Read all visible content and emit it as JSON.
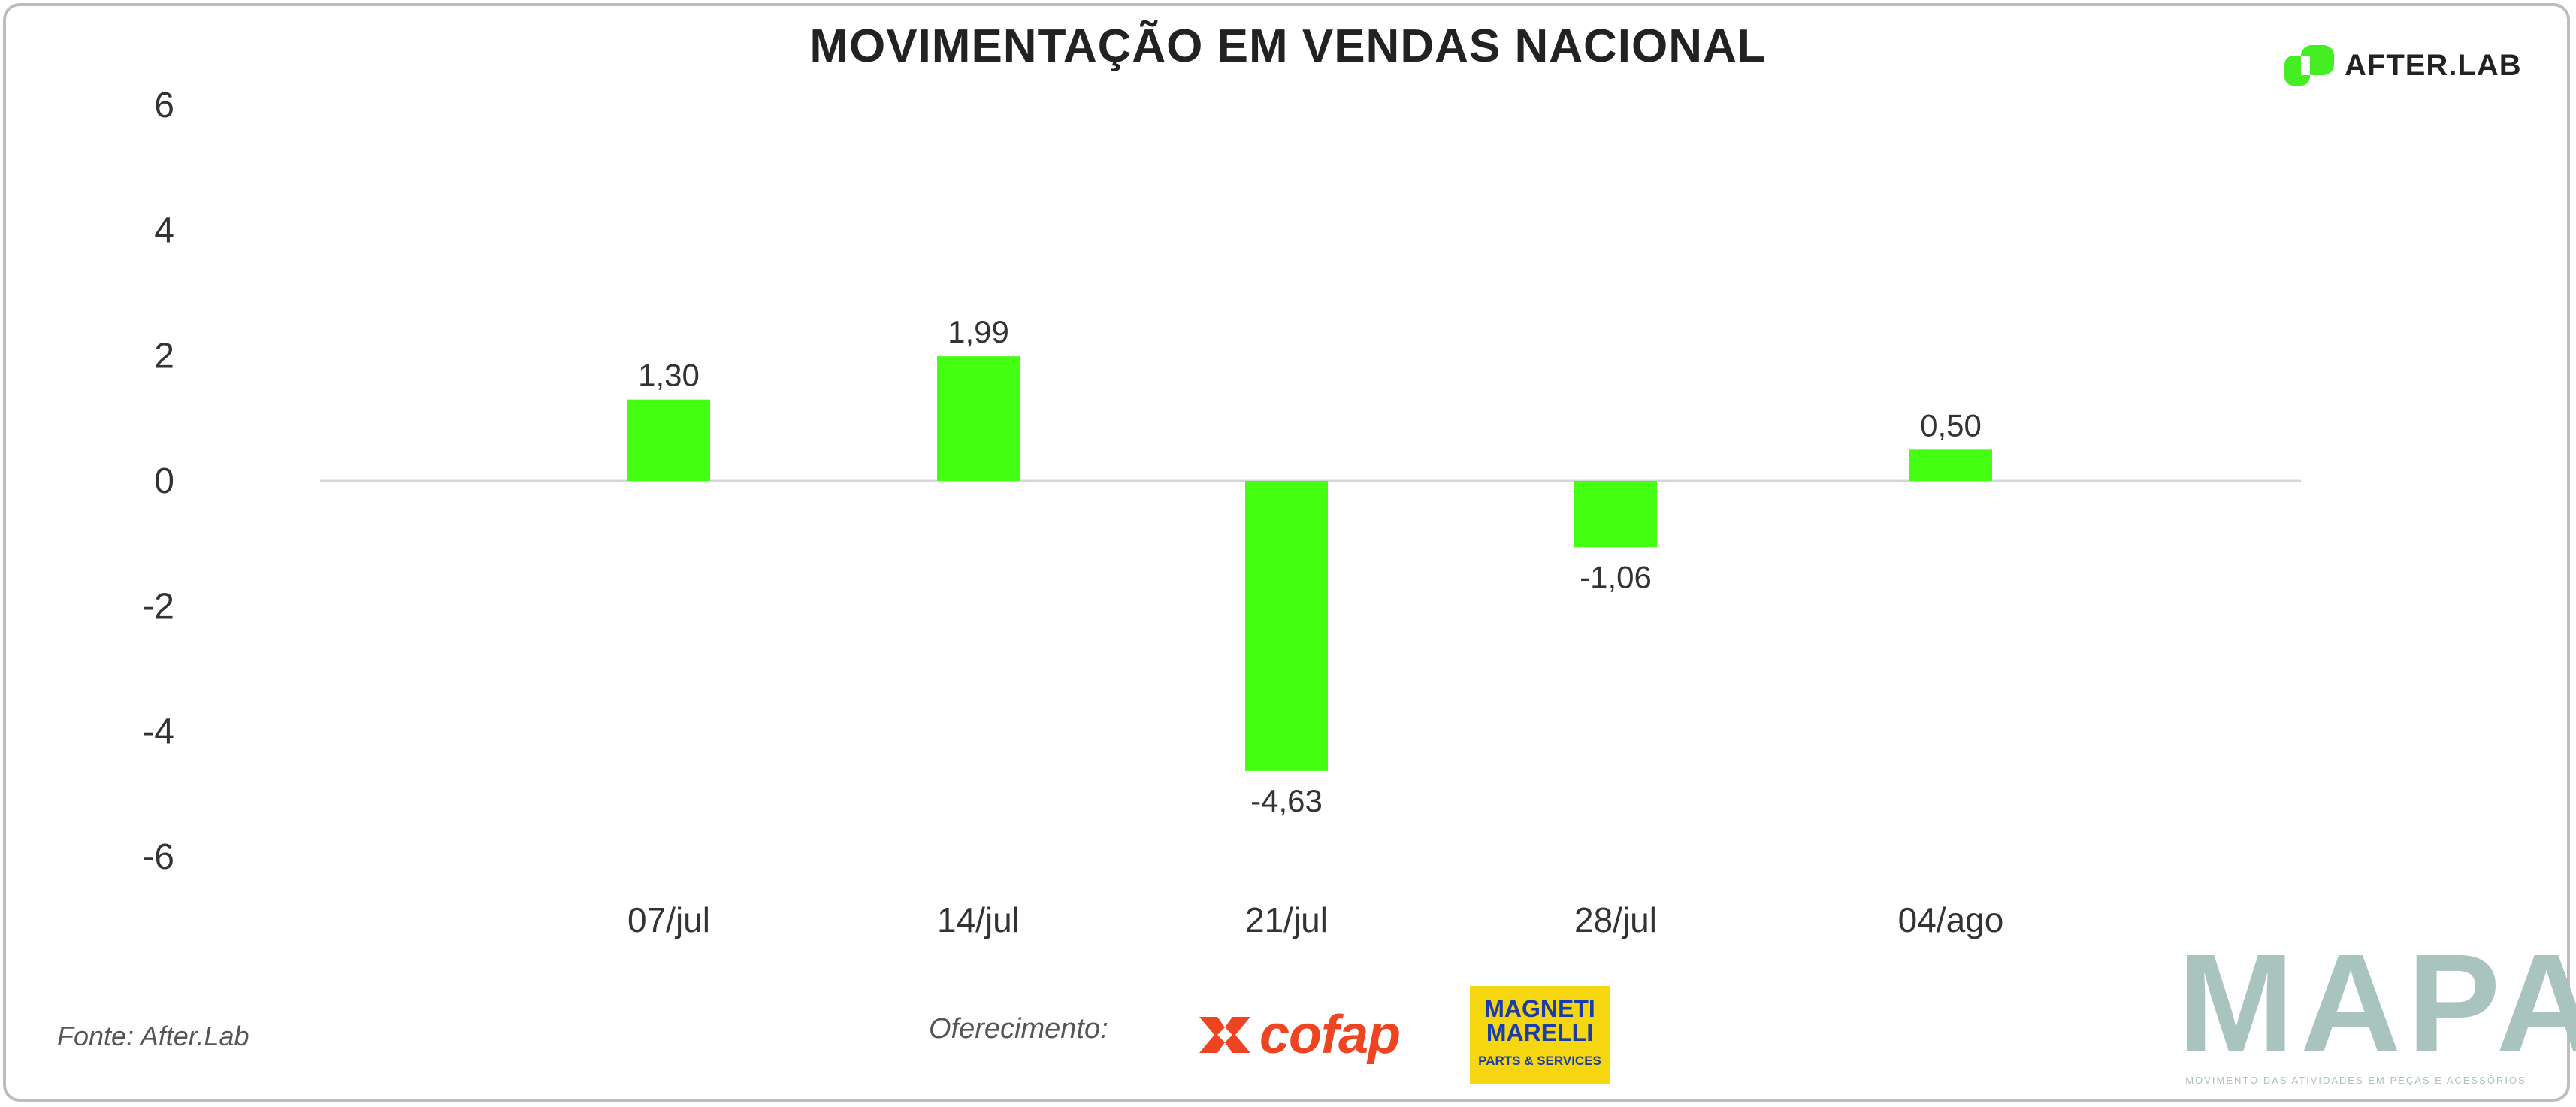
{
  "chart_data": {
    "type": "bar",
    "title": "MOVIMENTAÇÃO EM VENDAS NACIONAL",
    "xlabel": "",
    "ylabel": "",
    "categories": [
      "07/jul",
      "14/jul",
      "21/jul",
      "28/jul",
      "04/ago"
    ],
    "values": [
      1.3,
      1.99,
      -4.63,
      -1.06,
      0.5
    ],
    "data_labels": [
      "1,30",
      "1,99",
      "-4,63",
      "-1,06",
      "0,50"
    ],
    "yticks": [
      6,
      4,
      2,
      0,
      -2,
      -4,
      -6
    ],
    "ylim": [
      -6,
      6
    ],
    "grid": false,
    "legend": "none",
    "bar_color": "#44ff11"
  },
  "brand": {
    "name": "AFTER.LAB",
    "icon": "afterlab-logo-icon",
    "color": "#44ee22"
  },
  "footer": {
    "source": "Fonte: After.Lab",
    "sponsor_label": "Oferecimento:",
    "sponsors": [
      {
        "name": "cofap",
        "color": "#ee4422"
      },
      {
        "name_line1": "MAGNETI",
        "name_line2": "MARELLI",
        "subtitle": "PARTS & SERVICES",
        "color": "#f5d60f"
      }
    ],
    "mapa_logo": "MAPA",
    "mapa_subtitle": "MOVIMENTO DAS ATIVIDADES EM PEÇAS E ACESSÓRIOS"
  }
}
